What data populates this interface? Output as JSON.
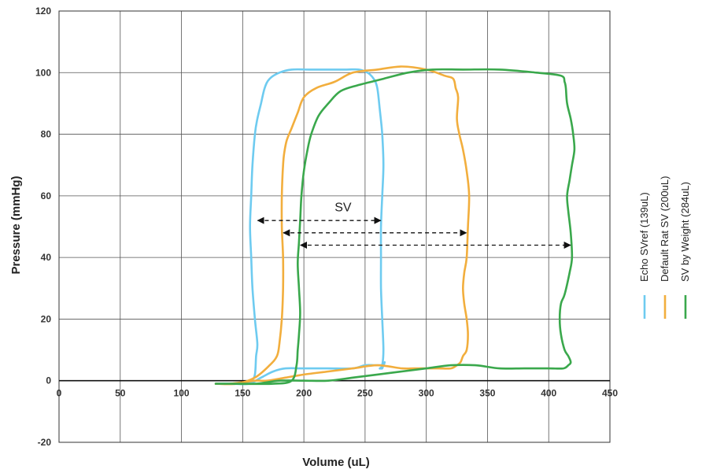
{
  "chart_data": {
    "type": "line",
    "title": "",
    "xlabel": "Volume (uL)",
    "ylabel": "Pressure (mmHg)",
    "xlim": [
      0,
      450
    ],
    "ylim": [
      -20,
      120
    ],
    "x_ticks": [
      0,
      50,
      100,
      150,
      200,
      250,
      300,
      350,
      400,
      450
    ],
    "y_ticks": [
      -20,
      0,
      20,
      40,
      60,
      80,
      100,
      120
    ],
    "x_tick_labels": [
      "0",
      "50",
      "100",
      "150",
      "200",
      "250",
      "300",
      "350",
      "400",
      "450"
    ],
    "y_tick_labels": [
      "-20",
      "0",
      "20",
      "40",
      "60",
      "80",
      "100",
      "120"
    ],
    "grid": true,
    "legend_position": "right, vertical",
    "annotation": {
      "text": "SV",
      "x": 232,
      "y": 55
    },
    "series": [
      {
        "name": "Echo SVref (139uL)",
        "color": "#6ecbf0",
        "x": [
          128,
          150,
          157,
          160,
          161,
          162,
          160,
          158,
          157,
          156,
          157,
          158,
          160,
          162,
          165,
          168,
          172,
          180,
          190,
          205,
          220,
          235,
          245,
          252,
          257,
          260,
          262,
          264,
          265,
          264,
          263,
          263,
          263,
          264,
          265,
          264,
          262,
          263,
          264,
          265,
          266,
          265,
          263,
          258,
          250,
          240,
          220,
          200,
          185,
          175,
          165,
          155,
          140,
          128
        ],
        "y": [
          -1,
          -1,
          0,
          2,
          8,
          12,
          20,
          30,
          40,
          50,
          60,
          70,
          80,
          85,
          90,
          95,
          98,
          100,
          101,
          101,
          101,
          101,
          101,
          100,
          98,
          95,
          88,
          80,
          70,
          60,
          50,
          40,
          30,
          20,
          10,
          5,
          4,
          4,
          4,
          5,
          6,
          5,
          5,
          5,
          5,
          4,
          4,
          4,
          4,
          3,
          1,
          -1,
          -1,
          -1
        ]
      },
      {
        "name": "Default Rat SV (200uL)",
        "color": "#f2ae3d",
        "x": [
          128,
          145,
          160,
          172,
          178,
          180,
          182,
          183,
          183,
          182,
          182,
          183,
          184,
          186,
          190,
          195,
          200,
          210,
          225,
          240,
          260,
          280,
          300,
          315,
          322,
          324,
          326,
          325,
          327,
          330,
          333,
          335,
          334,
          333,
          331,
          330,
          331,
          333,
          334,
          333,
          330,
          328,
          325,
          320,
          310,
          300,
          290,
          280,
          260,
          240,
          220,
          200,
          185,
          170,
          160,
          140,
          128
        ],
        "y": [
          -1,
          -1,
          1,
          5,
          8,
          12,
          20,
          30,
          40,
          50,
          60,
          70,
          74,
          78,
          82,
          87,
          92,
          95,
          97,
          100,
          101,
          102,
          101,
          99,
          98,
          95,
          92,
          85,
          80,
          75,
          68,
          60,
          50,
          40,
          35,
          30,
          25,
          20,
          15,
          10,
          8,
          6,
          5,
          4,
          4,
          4,
          4,
          4,
          5,
          4,
          3,
          2,
          1,
          0,
          0,
          -1,
          -1
        ]
      },
      {
        "name": "SV by Weight (284uL)",
        "color": "#3aa84c",
        "x": [
          128,
          150,
          175,
          190,
          194,
          195,
          196,
          197,
          196,
          195,
          196,
          197,
          198,
          200,
          203,
          206,
          212,
          220,
          230,
          245,
          265,
          285,
          305,
          330,
          360,
          390,
          410,
          413,
          414,
          415,
          418,
          420,
          421,
          419,
          417,
          415,
          416,
          418,
          419,
          417,
          413,
          410,
          409,
          410,
          413,
          416,
          418,
          416,
          412,
          400,
          380,
          360,
          340,
          320,
          300,
          280,
          260,
          240,
          220,
          200,
          180,
          160,
          140,
          128
        ],
        "y": [
          -1,
          -1,
          -1,
          0,
          5,
          10,
          15,
          22,
          30,
          38,
          45,
          52,
          60,
          68,
          75,
          80,
          86,
          90,
          94,
          96,
          98,
          100,
          101,
          101,
          101,
          100,
          99,
          97,
          95,
          90,
          85,
          80,
          75,
          70,
          65,
          60,
          55,
          48,
          40,
          35,
          28,
          25,
          20,
          15,
          10,
          8,
          6,
          5,
          4,
          4,
          4,
          4,
          5,
          5,
          4,
          3,
          2,
          1,
          0,
          0,
          0,
          -1,
          -1,
          -1
        ]
      }
    ],
    "sv_arrows": [
      {
        "series": "Echo SVref (139uL)",
        "y": 52,
        "x_from": 161,
        "x_to": 264
      },
      {
        "series": "Default Rat SV (200uL)",
        "y": 48,
        "x_from": 182,
        "x_to": 334
      },
      {
        "series": "SV by Weight (284uL)",
        "y": 44,
        "x_from": 196,
        "x_to": 419
      }
    ]
  }
}
